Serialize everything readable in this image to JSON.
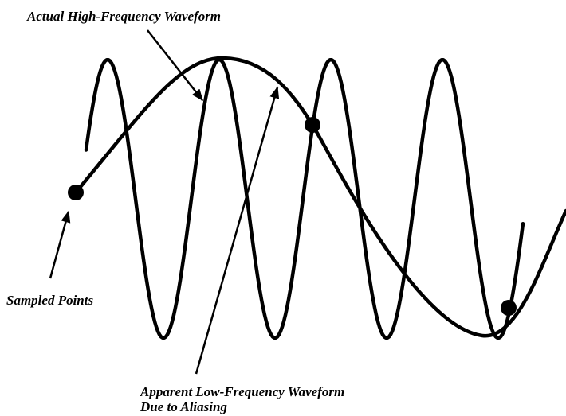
{
  "labels": {
    "actual": "Actual High-Frequency Waveform",
    "sampled": "Sampled Points",
    "apparent": [
      "Apparent Low-Frequency Waveform",
      "Due to Aliasing"
    ]
  }
}
